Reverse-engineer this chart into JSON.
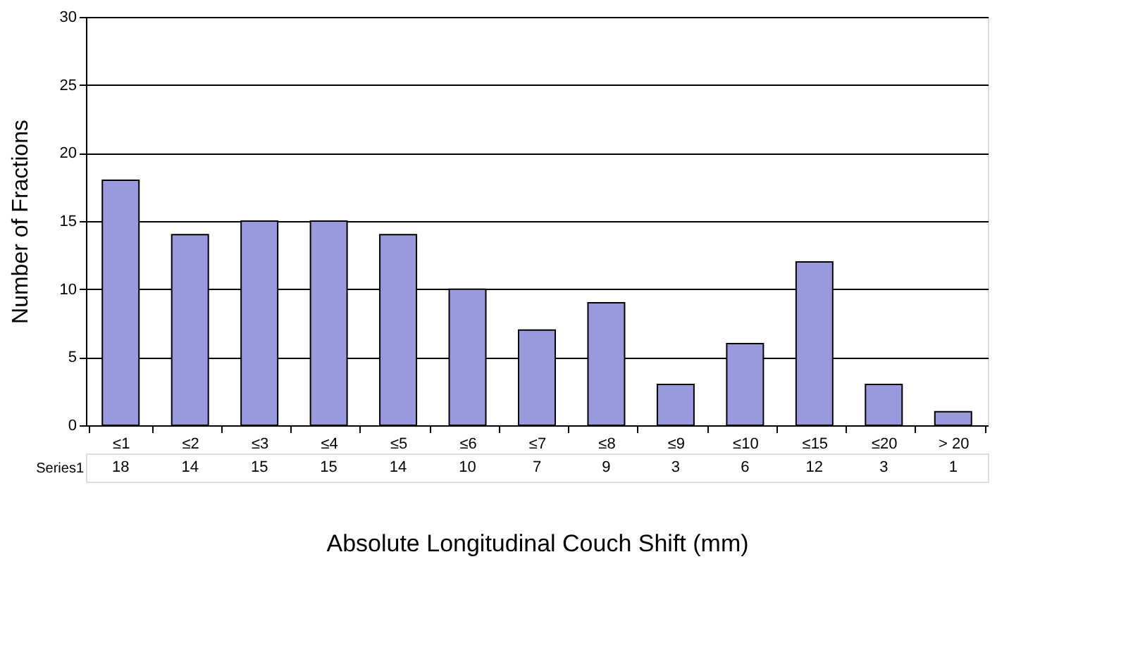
{
  "chart_data": {
    "type": "bar",
    "xlabel": "Absolute Longitudinal Couch Shift (mm)",
    "ylabel": "Number of Fractions",
    "categories": [
      "≤1",
      "≤2",
      "≤3",
      "≤4",
      "≤5",
      "≤6",
      "≤7",
      "≤8",
      "≤9",
      "≤10",
      "≤15",
      "≤20",
      "> 20"
    ],
    "series": [
      {
        "name": "Series1",
        "color": "#9999dd",
        "values": [
          18,
          14,
          15,
          15,
          14,
          10,
          7,
          9,
          3,
          6,
          12,
          3,
          1
        ]
      }
    ],
    "ylim": [
      0,
      30
    ],
    "yticks": [
      0,
      5,
      10,
      15,
      20,
      25,
      30
    ],
    "grid": "y",
    "legend": false,
    "data_labels": true
  }
}
